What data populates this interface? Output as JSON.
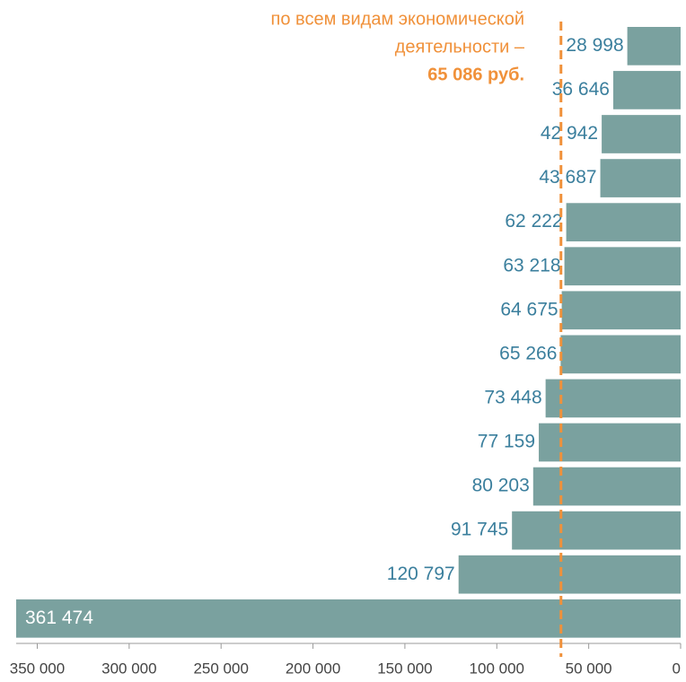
{
  "chart_data": {
    "type": "barh",
    "values": [
      28998,
      36646,
      42942,
      43687,
      62222,
      63218,
      64675,
      65266,
      73448,
      77159,
      80203,
      91745,
      120797,
      361474
    ],
    "value_labels": [
      "28 998",
      "36 646",
      "42 942",
      "43 687",
      "62 222",
      "63 218",
      "64 675",
      "65 266",
      "73 448",
      "77 159",
      "80 203",
      "91 745",
      "120 797",
      "361 474"
    ],
    "color": "#7aa19f",
    "label_color": "#3b7f9d",
    "xlim": [
      0,
      361474
    ],
    "xticks": [
      {
        "value": 350000,
        "label": "350 000"
      },
      {
        "value": 300000,
        "label": "300 000"
      },
      {
        "value": 250000,
        "label": "250 000"
      },
      {
        "value": 200000,
        "label": "200 000"
      },
      {
        "value": 150000,
        "label": "150 000"
      },
      {
        "value": 100000,
        "label": "100 000"
      },
      {
        "value": 50000,
        "label": "50 000"
      },
      0
    ],
    "reversed": true,
    "annotation": [
      "по всем видам экономической",
      "деятельности –"
    ],
    "average": {
      "value": 65086,
      "label": "65 086 руб.",
      "color": "#f0913a"
    }
  }
}
